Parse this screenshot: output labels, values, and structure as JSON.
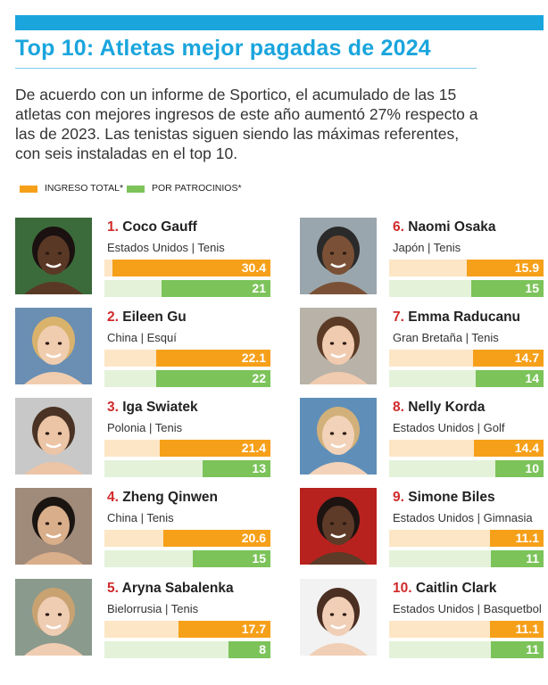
{
  "header": {
    "title": "Top 10: Atletas mejor pagadas de 2024",
    "intro": "De acuerdo con un informe de Sportico, el acumulado de las 15 atletas con mejores ingresos de este año aumentó 27% respecto a las de 2023. Las tenistas siguen siendo las máximas referentes, con seis instaladas en el top 10."
  },
  "legend": {
    "total_label": "INGRESO TOTAL*",
    "sponsor_label": "POR PATROCINIOS*"
  },
  "colors": {
    "accent": "#1aa5dd",
    "total": "#f6a01a",
    "total_track": "#fde6c5",
    "sponsor": "#7cc35a",
    "sponsor_track": "#e3f2d9",
    "rank": "#d02a2a"
  },
  "chart_data": {
    "type": "bar",
    "title": "Top 10: Atletas mejor pagadas de 2024",
    "series": [
      {
        "name": "INGRESO TOTAL*",
        "values": [
          30.4,
          22.1,
          21.4,
          20.6,
          17.7,
          15.9,
          14.7,
          14.4,
          11.1,
          11.1
        ]
      },
      {
        "name": "POR PATROCINIOS*",
        "values": [
          21,
          22,
          13,
          15,
          8,
          15,
          14,
          10,
          11,
          11
        ]
      }
    ],
    "athletes": [
      {
        "rank": "1.",
        "name": "Coco Gauff",
        "meta": "Estados Unidos | Tenis",
        "total": 30.4,
        "total_label": "30.4",
        "sponsor": 21,
        "sponsor_label": "21"
      },
      {
        "rank": "2.",
        "name": "Eileen Gu",
        "meta": "China | Esquí",
        "total": 22.1,
        "total_label": "22.1",
        "sponsor": 22,
        "sponsor_label": "22"
      },
      {
        "rank": "3.",
        "name": "Iga Swiatek",
        "meta": "Polonia | Tenis",
        "total": 21.4,
        "total_label": "21.4",
        "sponsor": 13,
        "sponsor_label": "13"
      },
      {
        "rank": "4.",
        "name": "Zheng Qinwen",
        "meta": "China | Tenis",
        "total": 20.6,
        "total_label": "20.6",
        "sponsor": 15,
        "sponsor_label": "15"
      },
      {
        "rank": "5.",
        "name": "Aryna Sabalenka",
        "meta": "Bielorrusia | Tenis",
        "total": 17.7,
        "total_label": "17.7",
        "sponsor": 8,
        "sponsor_label": "8"
      },
      {
        "rank": "6.",
        "name": "Naomi Osaka",
        "meta": "Japón | Tenis",
        "total": 15.9,
        "total_label": "15.9",
        "sponsor": 15,
        "sponsor_label": "15"
      },
      {
        "rank": "7.",
        "name": "Emma Raducanu",
        "meta": "Gran Bretaña | Tenis",
        "total": 14.7,
        "total_label": "14.7",
        "sponsor": 14,
        "sponsor_label": "14"
      },
      {
        "rank": "8.",
        "name": "Nelly Korda",
        "meta": "Estados Unidos | Golf",
        "total": 14.4,
        "total_label": "14.4",
        "sponsor": 10,
        "sponsor_label": "10"
      },
      {
        "rank": "9.",
        "name": "Simone Biles",
        "meta": "Estados Unidos | Gimnasia",
        "total": 11.1,
        "total_label": "11.1",
        "sponsor": 11,
        "sponsor_label": "11"
      },
      {
        "rank": "10.",
        "name": "Caitlin Clark",
        "meta": "Estados Unidos | Basquetbol",
        "total": 11.1,
        "total_label": "11.1",
        "sponsor": 11,
        "sponsor_label": "11"
      }
    ]
  }
}
